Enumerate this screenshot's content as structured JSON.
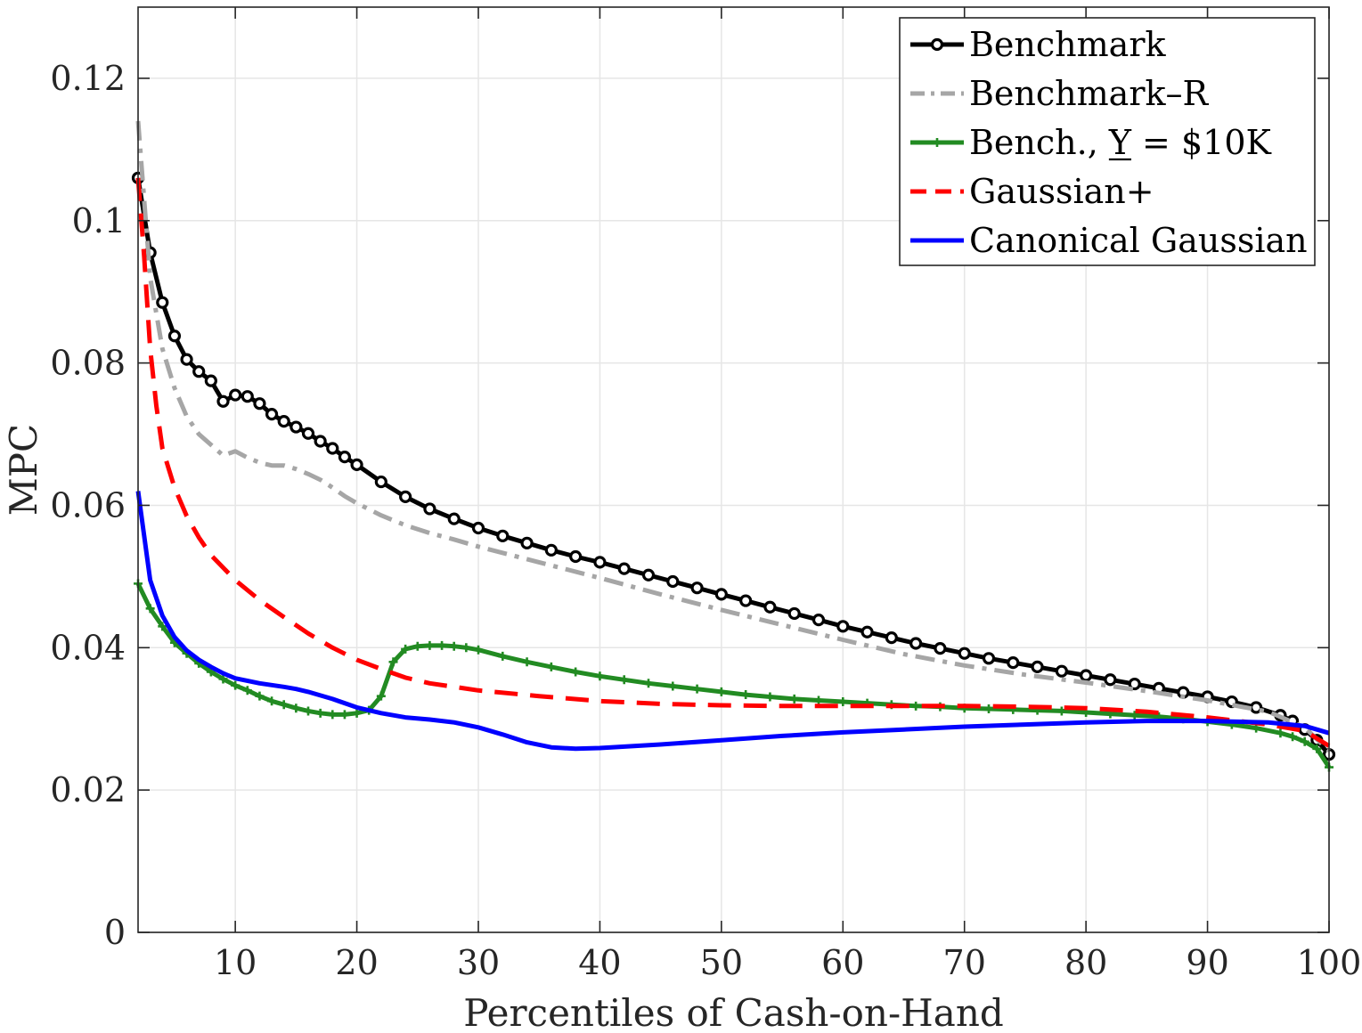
{
  "chart_data": {
    "type": "line",
    "title": "",
    "xlabel": "Percentiles of Cash-on-Hand",
    "ylabel": "MPC",
    "xlim": [
      2,
      100
    ],
    "ylim": [
      0,
      0.13
    ],
    "grid": true,
    "legend_position": "top-right",
    "x_ticks": [
      10,
      20,
      30,
      40,
      50,
      60,
      70,
      80,
      90,
      100
    ],
    "x_tick_labels": [
      "10",
      "20",
      "30",
      "40",
      "50",
      "60",
      "70",
      "80",
      "90",
      "100"
    ],
    "y_ticks": [
      0,
      0.02,
      0.04,
      0.06,
      0.08,
      0.1,
      0.12
    ],
    "y_tick_labels": [
      "0",
      "0.02",
      "0.04",
      "0.06",
      "0.08",
      "0.1",
      "0.12"
    ],
    "series": [
      {
        "name": "Benchmark",
        "legend_label": "Benchmark",
        "color": "#000000",
        "style": "solid",
        "marker": "circle",
        "x": [
          2,
          3,
          4,
          5,
          6,
          7,
          8,
          9,
          10,
          11,
          12,
          13,
          14,
          15,
          16,
          17,
          18,
          19,
          20,
          22,
          24,
          26,
          28,
          30,
          32,
          34,
          36,
          38,
          40,
          42,
          44,
          46,
          48,
          50,
          52,
          54,
          56,
          58,
          60,
          62,
          64,
          66,
          68,
          70,
          72,
          74,
          76,
          78,
          80,
          82,
          84,
          86,
          88,
          90,
          92,
          94,
          96,
          97,
          98,
          99,
          100
        ],
        "y": [
          0.106,
          0.0955,
          0.0885,
          0.0838,
          0.0805,
          0.0788,
          0.0775,
          0.0746,
          0.0755,
          0.0753,
          0.0743,
          0.0728,
          0.0718,
          0.071,
          0.0701,
          0.069,
          0.068,
          0.0668,
          0.0657,
          0.0633,
          0.0612,
          0.0595,
          0.0581,
          0.0568,
          0.0557,
          0.0547,
          0.0537,
          0.0528,
          0.052,
          0.0511,
          0.0502,
          0.0493,
          0.0484,
          0.0475,
          0.0466,
          0.0457,
          0.0448,
          0.0439,
          0.043,
          0.0422,
          0.0414,
          0.0406,
          0.0399,
          0.0392,
          0.0385,
          0.0379,
          0.0373,
          0.0367,
          0.0361,
          0.0355,
          0.0349,
          0.0343,
          0.0337,
          0.0331,
          0.0324,
          0.0316,
          0.0305,
          0.0297,
          0.0285,
          0.027,
          0.025
        ]
      },
      {
        "name": "Benchmark-R",
        "legend_label": "Benchmark–R",
        "color": "#a6a6a6",
        "style": "dashdot",
        "marker": "none",
        "x": [
          2,
          3,
          4,
          5,
          6,
          7,
          8,
          9,
          10,
          11,
          12,
          13,
          14,
          15,
          16,
          17,
          18,
          19,
          20,
          22,
          24,
          26,
          28,
          30,
          35,
          40,
          45,
          50,
          55,
          60,
          65,
          70,
          75,
          80,
          85,
          90,
          95,
          98,
          100
        ],
        "y": [
          0.114,
          0.092,
          0.082,
          0.0765,
          0.0725,
          0.07,
          0.0685,
          0.067,
          0.0676,
          0.0667,
          0.066,
          0.0656,
          0.0656,
          0.0651,
          0.0644,
          0.0636,
          0.0625,
          0.0613,
          0.0603,
          0.0586,
          0.0572,
          0.0561,
          0.0552,
          0.0542,
          0.052,
          0.0498,
          0.0475,
          0.0453,
          0.0432,
          0.0411,
          0.0391,
          0.0375,
          0.0362,
          0.0351,
          0.0339,
          0.0326,
          0.031,
          0.0288,
          0.0255
        ]
      },
      {
        "name": "Bench., Y_ = $10K",
        "legend_label": "Bench., Y = $10K",
        "color": "#228b22",
        "style": "solid",
        "marker": "plus",
        "x": [
          2,
          3,
          4,
          5,
          6,
          7,
          8,
          9,
          10,
          11,
          12,
          13,
          14,
          15,
          16,
          17,
          18,
          19,
          20,
          21,
          22,
          23,
          24,
          25,
          26,
          27,
          28,
          29,
          30,
          32,
          34,
          36,
          38,
          40,
          42,
          44,
          46,
          48,
          50,
          52,
          54,
          56,
          58,
          60,
          62,
          64,
          66,
          68,
          70,
          72,
          74,
          76,
          78,
          80,
          82,
          84,
          86,
          88,
          90,
          92,
          94,
          96,
          97,
          98,
          99,
          100
        ],
        "y": [
          0.049,
          0.0455,
          0.043,
          0.0407,
          0.0392,
          0.0378,
          0.0366,
          0.0356,
          0.0347,
          0.034,
          0.0332,
          0.0325,
          0.032,
          0.0315,
          0.0311,
          0.0308,
          0.0306,
          0.0306,
          0.0308,
          0.0312,
          0.0332,
          0.038,
          0.0398,
          0.0402,
          0.0403,
          0.0403,
          0.0402,
          0.04,
          0.0397,
          0.0388,
          0.038,
          0.0373,
          0.0366,
          0.036,
          0.0355,
          0.035,
          0.0346,
          0.0342,
          0.0338,
          0.0334,
          0.0331,
          0.0328,
          0.0326,
          0.0324,
          0.0322,
          0.032,
          0.0318,
          0.0317,
          0.0315,
          0.0314,
          0.0313,
          0.0312,
          0.0311,
          0.0309,
          0.0307,
          0.0305,
          0.0303,
          0.03,
          0.0296,
          0.0292,
          0.0287,
          0.028,
          0.0275,
          0.0268,
          0.0258,
          0.0232
        ]
      },
      {
        "name": "Gaussian+",
        "legend_label": "Gaussian+",
        "color": "#ff0000",
        "style": "dashed",
        "marker": "none",
        "x": [
          2,
          2.5,
          3,
          3.5,
          4,
          5,
          6,
          7,
          8,
          10,
          12,
          14,
          16,
          18,
          20,
          22,
          24,
          26,
          28,
          30,
          35,
          40,
          45,
          50,
          55,
          60,
          65,
          70,
          75,
          80,
          85,
          90,
          95,
          98,
          100
        ],
        "y": [
          0.106,
          0.095,
          0.082,
          0.074,
          0.068,
          0.0625,
          0.0585,
          0.0555,
          0.053,
          0.0495,
          0.0467,
          0.0443,
          0.042,
          0.04,
          0.0383,
          0.037,
          0.0358,
          0.035,
          0.0345,
          0.034,
          0.0332,
          0.0325,
          0.0321,
          0.0319,
          0.0318,
          0.0318,
          0.0318,
          0.0318,
          0.0317,
          0.0315,
          0.031,
          0.0302,
          0.0292,
          0.0283,
          0.0262
        ]
      },
      {
        "name": "Canonical Gaussian",
        "legend_label": "Canonical Gaussian",
        "color": "#0000ff",
        "style": "solid",
        "marker": "none",
        "x": [
          2,
          3,
          4,
          5,
          6,
          7,
          8,
          9,
          10,
          12,
          14,
          15,
          16,
          18,
          20,
          22,
          24,
          26,
          28,
          30,
          32,
          34,
          36,
          38,
          40,
          45,
          50,
          55,
          60,
          65,
          70,
          75,
          80,
          85,
          90,
          95,
          98,
          100
        ],
        "y": [
          0.062,
          0.0495,
          0.0445,
          0.0415,
          0.0396,
          0.0383,
          0.0373,
          0.0364,
          0.0357,
          0.035,
          0.0345,
          0.0342,
          0.0338,
          0.0328,
          0.0316,
          0.0308,
          0.0302,
          0.0299,
          0.0295,
          0.0288,
          0.0278,
          0.0267,
          0.026,
          0.0258,
          0.0259,
          0.0264,
          0.027,
          0.0276,
          0.0281,
          0.0285,
          0.0289,
          0.0292,
          0.0295,
          0.0297,
          0.0297,
          0.0295,
          0.029,
          0.028
        ]
      }
    ]
  }
}
